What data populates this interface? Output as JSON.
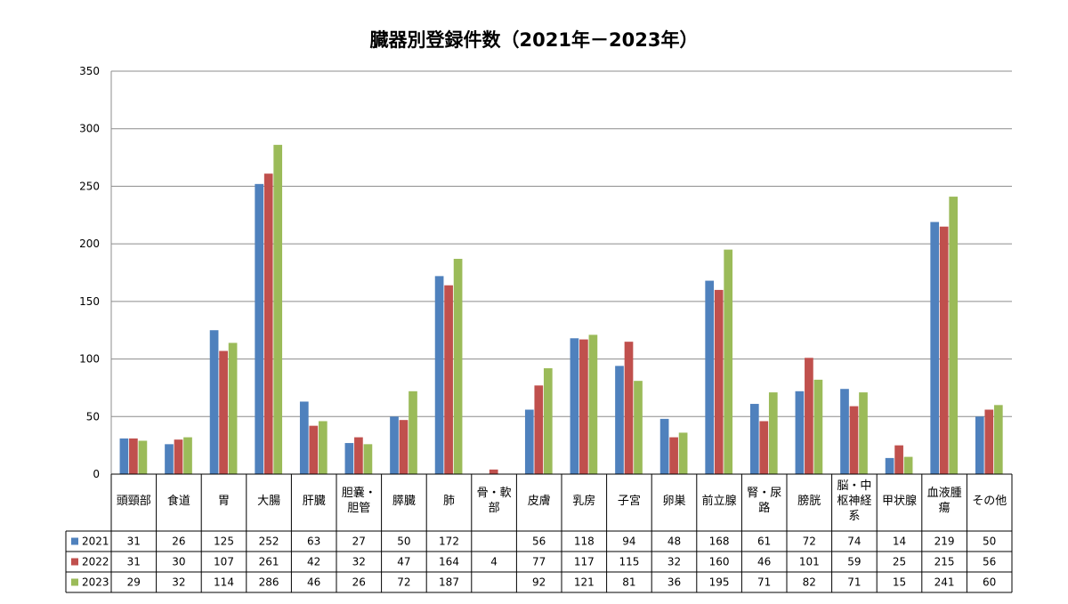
{
  "chart_data": {
    "type": "bar",
    "title": "臓器別登録件数（2021年－2023年）",
    "xlabel": "",
    "ylabel": "",
    "ylim": [
      0,
      350
    ],
    "yticks": [
      0,
      50,
      100,
      150,
      200,
      250,
      300,
      350
    ],
    "grid": true,
    "legend": "data-table-left",
    "categories": [
      [
        "頭頸部"
      ],
      [
        "食道"
      ],
      [
        "胃"
      ],
      [
        "大腸"
      ],
      [
        "肝臓"
      ],
      [
        "胆嚢・",
        "胆管"
      ],
      [
        "膵臓"
      ],
      [
        "肺"
      ],
      [
        "骨・軟",
        "部"
      ],
      [
        "皮膚"
      ],
      [
        "乳房"
      ],
      [
        "子宮"
      ],
      [
        "卵巣"
      ],
      [
        "前立腺"
      ],
      [
        "腎・尿",
        "路"
      ],
      [
        "膀胱"
      ],
      [
        "脳・中",
        "枢神経",
        "系"
      ],
      [
        "甲状腺"
      ],
      [
        "血液腫",
        "瘍"
      ],
      [
        "その他"
      ]
    ],
    "series": [
      {
        "name": "2021",
        "color": "#4f81bd",
        "values": [
          31,
          26,
          125,
          252,
          63,
          27,
          50,
          172,
          null,
          56,
          118,
          94,
          48,
          168,
          61,
          72,
          74,
          14,
          219,
          50
        ]
      },
      {
        "name": "2022",
        "color": "#c0504d",
        "values": [
          31,
          30,
          107,
          261,
          42,
          32,
          47,
          164,
          4,
          77,
          117,
          115,
          32,
          160,
          46,
          101,
          59,
          25,
          215,
          56
        ]
      },
      {
        "name": "2023",
        "color": "#9bbb59",
        "values": [
          29,
          32,
          114,
          286,
          46,
          26,
          72,
          187,
          null,
          92,
          121,
          81,
          36,
          195,
          71,
          82,
          71,
          15,
          241,
          60
        ]
      }
    ]
  }
}
